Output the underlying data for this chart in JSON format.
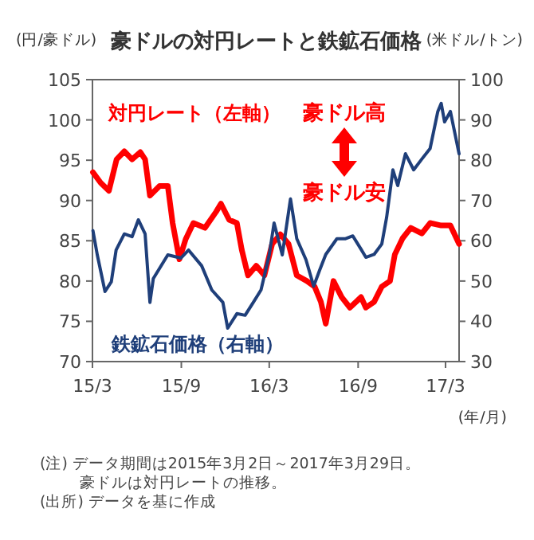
{
  "chart_data": {
    "type": "line",
    "title": "豪ドルの対円レートと鉄鉱石価格",
    "ylabel": "(円/豪ドル)",
    "y2label": "(米ドル/トン)",
    "xlabel": "(年/月)",
    "xlim": [
      "2015-03-01",
      "2017-03-29"
    ],
    "xticks": [
      {
        "value": "2015-03-01",
        "label": "15/3"
      },
      {
        "value": "2015-09-01",
        "label": "15/9"
      },
      {
        "value": "2016-03-01",
        "label": "16/3"
      },
      {
        "value": "2016-09-01",
        "label": "16/9"
      },
      {
        "value": "2017-03-01",
        "label": "17/3"
      }
    ],
    "ylim": [
      70,
      105
    ],
    "yticks": [
      70,
      75,
      80,
      85,
      90,
      95,
      100,
      105
    ],
    "y2lim": [
      30,
      100
    ],
    "y2ticks": [
      30,
      40,
      50,
      60,
      70,
      80,
      90,
      100
    ],
    "grid": false,
    "series": [
      {
        "name": "対円レート（左軸）",
        "color": "#ff0000",
        "axis": "y",
        "x": [
          "2015-03-02",
          "2015-03-18",
          "2015-04-04",
          "2015-04-20",
          "2015-05-06",
          "2015-05-22",
          "2015-06-08",
          "2015-06-18",
          "2015-06-28",
          "2015-07-18",
          "2015-08-04",
          "2015-08-14",
          "2015-08-28",
          "2015-09-10",
          "2015-09-26",
          "2015-10-20",
          "2015-11-12",
          "2015-11-22",
          "2015-12-09",
          "2015-12-25",
          "2016-01-04",
          "2016-01-17",
          "2016-02-03",
          "2016-02-20",
          "2016-03-07",
          "2016-03-24",
          "2016-04-10",
          "2016-04-27",
          "2016-05-18",
          "2016-06-03",
          "2016-06-16",
          "2016-06-26",
          "2016-07-12",
          "2016-07-29",
          "2016-08-15",
          "2016-09-07",
          "2016-09-17",
          "2016-10-04",
          "2016-10-20",
          "2016-11-06",
          "2016-11-16",
          "2016-12-02",
          "2016-12-19",
          "2017-01-11",
          "2017-01-28",
          "2017-02-20",
          "2017-03-11",
          "2017-03-29"
        ],
        "values": [
          93.5,
          92.2,
          91.2,
          95.1,
          96.1,
          95.1,
          96,
          95.1,
          90.6,
          91.8,
          91.8,
          87.2,
          82.7,
          85.2,
          87.2,
          86.6,
          88.6,
          89.6,
          87.6,
          87.2,
          83.9,
          80.7,
          81.9,
          80.7,
          84.6,
          85.8,
          84.6,
          80.7,
          80,
          79.3,
          77.4,
          74.7,
          80,
          78,
          76.7,
          78,
          76.7,
          77.4,
          79.3,
          80,
          83.3,
          85.3,
          86.6,
          85.9,
          87.2,
          86.9,
          86.9,
          84.6
        ]
      },
      {
        "name": "鉄鉱石価格（右軸）",
        "color": "#1f3f7a",
        "axis": "y2",
        "x": [
          "2015-03-02",
          "2015-03-11",
          "2015-03-27",
          "2015-04-09",
          "2015-04-19",
          "2015-05-06",
          "2015-05-22",
          "2015-06-04",
          "2015-06-18",
          "2015-06-28",
          "2015-07-05",
          "2015-08-04",
          "2015-08-31",
          "2015-09-16",
          "2015-10-13",
          "2015-11-03",
          "2015-11-26",
          "2015-12-06",
          "2015-12-25",
          "2016-01-11",
          "2016-01-28",
          "2016-02-13",
          "2016-03-01",
          "2016-03-11",
          "2016-03-28",
          "2016-04-14",
          "2016-04-27",
          "2016-05-16",
          "2016-06-01",
          "2016-06-13",
          "2016-06-26",
          "2016-07-19",
          "2016-08-05",
          "2016-08-21",
          "2016-09-07",
          "2016-09-17",
          "2016-10-04",
          "2016-10-20",
          "2016-10-30",
          "2016-11-12",
          "2016-11-22",
          "2016-12-08",
          "2016-12-25",
          "2017-01-11",
          "2017-01-28",
          "2017-02-13",
          "2017-02-20",
          "2017-02-27",
          "2017-03-11",
          "2017-03-29"
        ],
        "values": [
          62.5,
          56.5,
          47.4,
          49.8,
          57.7,
          61.7,
          61,
          65.2,
          61.7,
          44.7,
          50.6,
          56.5,
          55.7,
          57.7,
          53.8,
          47.8,
          44.7,
          38.3,
          41.9,
          41.5,
          44.7,
          47.8,
          56.5,
          64.4,
          56.5,
          70.4,
          60.5,
          55.3,
          48.7,
          52.6,
          56.6,
          60.5,
          60.5,
          61.2,
          57.9,
          55.9,
          56.6,
          59.2,
          65.8,
          77.6,
          73.7,
          81.6,
          77.6,
          80.3,
          82.9,
          92.1,
          94.1,
          89.5,
          92.1,
          81.6
        ]
      }
    ],
    "annotations": [
      "豪ドル高",
      "豪ドル安",
      "(注) データ期間は2015年3月2日～2017年3月29日。",
      "豪ドルは対円レートの推移。",
      "(出所) データを基に作成"
    ]
  }
}
